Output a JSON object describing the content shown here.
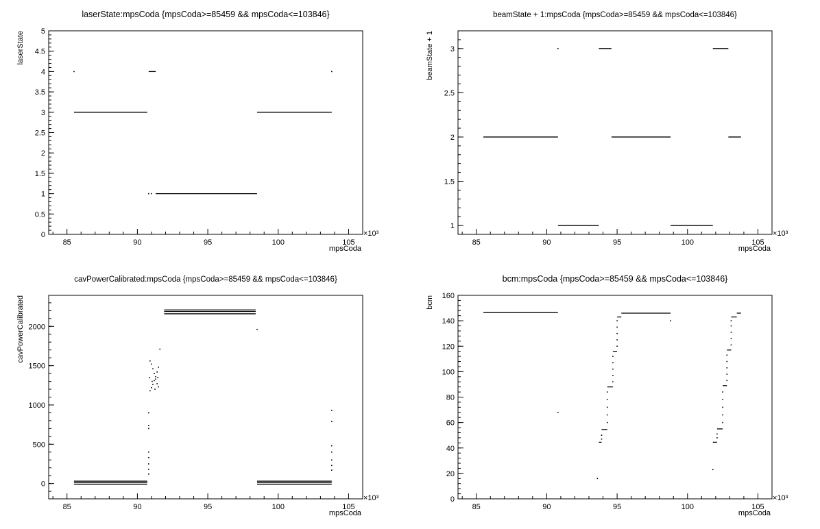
{
  "chart_data": [
    {
      "id": "laser",
      "type": "scatter",
      "title": "laserState:mpsCoda {mpsCoda>=85459 && mpsCoda<=103846}",
      "xlabel": "mpsCoda",
      "ylabel": "laserState",
      "x_multiplier": "×10³",
      "xlim": [
        83.7,
        106.0
      ],
      "ylim": [
        0,
        5
      ],
      "x_ticks": [
        85,
        90,
        95,
        100,
        105
      ],
      "y_ticks": [
        0,
        0.5,
        1,
        1.5,
        2,
        2.5,
        3,
        3.5,
        4,
        4.5,
        5
      ],
      "y_tick_labels": [
        "0",
        "0.5",
        "1",
        "1.5",
        "2",
        "2.5",
        "3",
        "3.5",
        "4",
        "4.5",
        "5"
      ],
      "segments": [
        {
          "x0": 85.5,
          "x1": 90.7,
          "y": 3
        },
        {
          "x0": 90.8,
          "x1": 91.3,
          "y": 4
        },
        {
          "x0": 91.3,
          "x1": 98.5,
          "y": 1
        },
        {
          "x0": 98.5,
          "x1": 103.8,
          "y": 3
        }
      ],
      "points": [
        [
          85.5,
          4
        ],
        [
          103.8,
          4
        ],
        [
          90.8,
          1
        ],
        [
          91.0,
          1
        ]
      ]
    },
    {
      "id": "beam",
      "type": "scatter",
      "title": "beamState + 1:mpsCoda {mpsCoda>=85459 && mpsCoda<=103846}",
      "xlabel": "mpsCoda",
      "ylabel": "beamState + 1",
      "x_multiplier": "×10³",
      "xlim": [
        83.7,
        106.0
      ],
      "ylim": [
        0.9,
        3.2
      ],
      "x_ticks": [
        85,
        90,
        95,
        100,
        105
      ],
      "y_ticks": [
        1,
        1.5,
        2,
        2.5,
        3
      ],
      "y_tick_labels": [
        "1",
        "1.5",
        "2",
        "2.5",
        "3"
      ],
      "segments": [
        {
          "x0": 85.5,
          "x1": 90.8,
          "y": 2
        },
        {
          "x0": 90.8,
          "x1": 93.7,
          "y": 1
        },
        {
          "x0": 93.7,
          "x1": 94.6,
          "y": 3
        },
        {
          "x0": 94.6,
          "x1": 98.8,
          "y": 2
        },
        {
          "x0": 98.8,
          "x1": 101.8,
          "y": 1
        },
        {
          "x0": 101.8,
          "x1": 102.9,
          "y": 3
        },
        {
          "x0": 102.9,
          "x1": 103.8,
          "y": 2
        }
      ],
      "points": [
        [
          90.8,
          3
        ]
      ]
    },
    {
      "id": "cav",
      "type": "scatter",
      "title": "cavPowerCalibrated:mpsCoda {mpsCoda>=85459 && mpsCoda<=103846}",
      "xlabel": "mpsCoda",
      "ylabel": "cavPowerCalibrated",
      "x_multiplier": "×10³",
      "xlim": [
        83.7,
        106.0
      ],
      "ylim": [
        -195,
        2395
      ],
      "x_ticks": [
        85,
        90,
        95,
        100,
        105
      ],
      "y_ticks": [
        0,
        500,
        1000,
        1500,
        2000
      ],
      "y_tick_labels": [
        "0",
        "500",
        "1000",
        "1500",
        "2000"
      ],
      "segments": [
        {
          "x0": 85.5,
          "x1": 90.7,
          "y": 30
        },
        {
          "x0": 85.5,
          "x1": 90.7,
          "y": 10
        },
        {
          "x0": 85.5,
          "x1": 90.7,
          "y": -10
        },
        {
          "x0": 91.9,
          "x1": 98.4,
          "y": 2210
        },
        {
          "x0": 91.9,
          "x1": 98.4,
          "y": 2190
        },
        {
          "x0": 91.9,
          "x1": 98.4,
          "y": 2160
        },
        {
          "x0": 98.5,
          "x1": 103.8,
          "y": 30
        },
        {
          "x0": 98.5,
          "x1": 103.8,
          "y": 10
        },
        {
          "x0": 98.5,
          "x1": 103.8,
          "y": -10
        }
      ],
      "points": [
        [
          90.9,
          1180
        ],
        [
          91.0,
          1220
        ],
        [
          91.1,
          1260
        ],
        [
          91.2,
          1310
        ],
        [
          91.3,
          1360
        ],
        [
          91.4,
          1420
        ],
        [
          91.5,
          1480
        ],
        [
          90.9,
          1560
        ],
        [
          91.0,
          1520
        ],
        [
          91.1,
          1460
        ],
        [
          91.2,
          1400
        ],
        [
          91.3,
          1330
        ],
        [
          91.4,
          1270
        ],
        [
          91.5,
          1230
        ],
        [
          90.85,
          1350
        ],
        [
          91.05,
          1300
        ],
        [
          91.25,
          1200
        ],
        [
          91.45,
          1350
        ],
        [
          90.8,
          900
        ],
        [
          90.8,
          740
        ],
        [
          90.8,
          700
        ],
        [
          90.8,
          400
        ],
        [
          90.8,
          330
        ],
        [
          90.8,
          250
        ],
        [
          90.8,
          180
        ],
        [
          90.8,
          120
        ],
        [
          91.6,
          1710
        ],
        [
          98.5,
          1960
        ],
        [
          103.8,
          930
        ],
        [
          103.8,
          790
        ],
        [
          103.8,
          480
        ],
        [
          103.8,
          400
        ],
        [
          103.8,
          300
        ],
        [
          103.8,
          230
        ],
        [
          103.8,
          170
        ]
      ]
    },
    {
      "id": "bcm",
      "type": "scatter",
      "title": "bcm:mpsCoda {mpsCoda>=85459 && mpsCoda<=103846}",
      "xlabel": "mpsCoda",
      "ylabel": "bcm",
      "x_multiplier": "×10³",
      "xlim": [
        83.7,
        106.0
      ],
      "ylim": [
        0,
        160
      ],
      "x_ticks": [
        85,
        90,
        95,
        100,
        105
      ],
      "y_ticks": [
        0,
        20,
        40,
        60,
        80,
        100,
        120,
        140,
        160
      ],
      "y_tick_labels": [
        "0",
        "20",
        "40",
        "60",
        "80",
        "100",
        "120",
        "140",
        "160"
      ],
      "segments": [
        {
          "x0": 85.5,
          "x1": 90.8,
          "y": 146.5
        },
        {
          "x0": 93.7,
          "x1": 93.9,
          "y": 44.5
        },
        {
          "x0": 93.9,
          "x1": 94.3,
          "y": 54.5
        },
        {
          "x0": 94.3,
          "x1": 94.7,
          "y": 88
        },
        {
          "x0": 94.7,
          "x1": 95.0,
          "y": 116
        },
        {
          "x0": 95.0,
          "x1": 95.3,
          "y": 143
        },
        {
          "x0": 95.3,
          "x1": 98.8,
          "y": 146
        },
        {
          "x0": 101.8,
          "x1": 102.1,
          "y": 44.5
        },
        {
          "x0": 102.1,
          "x1": 102.5,
          "y": 55
        },
        {
          "x0": 102.5,
          "x1": 102.8,
          "y": 89
        },
        {
          "x0": 102.8,
          "x1": 103.1,
          "y": 117
        },
        {
          "x0": 103.1,
          "x1": 103.5,
          "y": 143
        },
        {
          "x0": 103.5,
          "x1": 103.8,
          "y": 146
        }
      ],
      "points": [
        [
          90.8,
          68
        ],
        [
          93.6,
          16
        ],
        [
          98.8,
          140
        ],
        [
          101.8,
          23
        ],
        [
          93.9,
          47
        ],
        [
          93.9,
          50
        ],
        [
          94.3,
          60
        ],
        [
          94.3,
          66
        ],
        [
          94.3,
          72
        ],
        [
          94.3,
          78
        ],
        [
          94.3,
          84
        ],
        [
          94.7,
          92
        ],
        [
          94.7,
          97
        ],
        [
          94.7,
          102
        ],
        [
          94.7,
          107
        ],
        [
          94.7,
          112
        ],
        [
          95.0,
          120
        ],
        [
          95.0,
          125
        ],
        [
          95.0,
          130
        ],
        [
          95.0,
          135
        ],
        [
          95.0,
          140
        ],
        [
          102.1,
          48
        ],
        [
          102.1,
          51
        ],
        [
          102.5,
          60
        ],
        [
          102.5,
          66
        ],
        [
          102.5,
          72
        ],
        [
          102.5,
          78
        ],
        [
          102.5,
          84
        ],
        [
          102.8,
          93
        ],
        [
          102.8,
          98
        ],
        [
          102.8,
          103
        ],
        [
          102.8,
          108
        ],
        [
          102.8,
          113
        ],
        [
          103.1,
          121
        ],
        [
          103.1,
          126
        ],
        [
          103.1,
          131
        ],
        [
          103.1,
          136
        ],
        [
          103.1,
          140
        ]
      ]
    }
  ]
}
